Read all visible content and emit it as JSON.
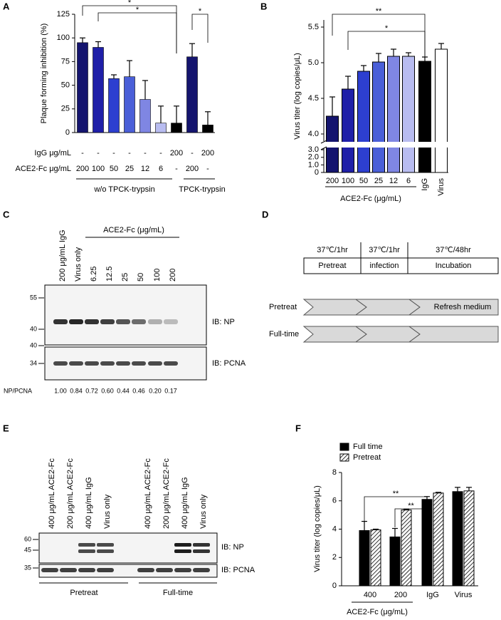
{
  "panel_letters": [
    "A",
    "B",
    "C",
    "D",
    "E",
    "F"
  ],
  "chart_data": [
    {
      "type": "bar",
      "y_label": "Plaque forming inhibition (%)",
      "values": [
        95,
        90,
        57,
        59,
        35,
        10,
        10,
        80,
        8
      ],
      "errors": [
        5,
        6,
        4,
        17,
        20,
        18,
        18,
        14,
        14
      ],
      "colors": [
        "#14146e",
        "#1f1fa8",
        "#2d3fd0",
        "#4a5fd8",
        "#7f86e3",
        "#b8bcf0",
        "#000000",
        "#14146e",
        "#000000"
      ],
      "ylim": [
        0,
        125
      ],
      "yticks": [
        0,
        25,
        50,
        75,
        100,
        125
      ],
      "rows": [
        {
          "label": "IgG μg/mL",
          "cells": [
            "-",
            "-",
            "-",
            "-",
            "-",
            "-",
            "200",
            "-",
            "200"
          ]
        },
        {
          "label": "ACE2-Fc μg/mL",
          "cells": [
            "200",
            "100",
            "50",
            "25",
            "12",
            "6",
            "-",
            "200",
            "-"
          ]
        }
      ],
      "groups": [
        "w/o TPCK-trypsin",
        "TPCK-trypsin"
      ],
      "significance": [
        "*",
        "*",
        "*"
      ]
    },
    {
      "type": "broken-bar",
      "y_label": "Virus titer (log copies/μL)",
      "categories": [
        "200",
        "100",
        "50",
        "25",
        "12",
        "6",
        "IgG",
        "Virus"
      ],
      "values": [
        4.25,
        4.63,
        4.88,
        5.01,
        5.09,
        5.09,
        5.02,
        5.19
      ],
      "errors": [
        0.27,
        0.18,
        0.08,
        0.12,
        0.1,
        0.05,
        0.06,
        0.08
      ],
      "colors": [
        "#14146e",
        "#1f1fa8",
        "#2d3fd0",
        "#4a5fd8",
        "#7f86e3",
        "#b8bcf0",
        "#000000",
        "#ffffff"
      ],
      "segments": [
        {
          "ylim": [
            0,
            3.2
          ],
          "yticks": [
            0,
            {
              "value": 1,
              "label": "1.0"
            },
            {
              "value": 2,
              "label": "2.0"
            },
            {
              "value": 3,
              "label": "3.0"
            }
          ]
        },
        {
          "ylim": [
            3.9,
            5.6
          ],
          "yticks": [
            {
              "value": 4,
              "label": "4.0"
            },
            4.5,
            {
              "value": 5,
              "label": "5.0"
            },
            5.5
          ]
        }
      ],
      "group_label": "ACE2-Fc (μg/mL)",
      "significance": [
        "**",
        "*"
      ]
    },
    {
      "type": "grouped-bar",
      "y_label": "Virus titer (log copies/μL)",
      "categories": [
        "400",
        "200",
        "IgG",
        "Virus"
      ],
      "series": [
        {
          "name": "Full time",
          "color": "#000000",
          "values": [
            3.9,
            3.45,
            6.1,
            6.65
          ],
          "errors": [
            0.65,
            0.6,
            0.2,
            0.3
          ]
        },
        {
          "name": "Pretreat",
          "color": "#000000",
          "pattern": "hatch",
          "values": [
            3.95,
            5.35,
            6.55,
            6.7
          ],
          "errors": [
            0.05,
            0.05,
            0.05,
            0.25
          ]
        }
      ],
      "ylim": [
        0,
        8
      ],
      "yticks": [
        0,
        2,
        4,
        6,
        8
      ],
      "group_label": "ACE2-Fc (μg/mL)",
      "significance": [
        "**",
        "**"
      ]
    }
  ],
  "blot_c": {
    "lanes": [
      "200  μg/mL IgG",
      "Virus only",
      "6.25",
      "12.5",
      "25",
      "50",
      "100",
      "200"
    ],
    "header": "ACE2-Fc (μg/mL)",
    "markers_np": [
      "55",
      "40"
    ],
    "markers_pcna": [
      "40",
      "34"
    ],
    "targets": [
      "IB: NP",
      "IB: PCNA"
    ],
    "ratio_label": "NP/PCNA",
    "ratios": [
      "1.00",
      "0.84",
      "0.72",
      "0.60",
      "0.44",
      "0.46",
      "0.20",
      "0.17"
    ]
  },
  "diagram_d": {
    "times": [
      "37℃/1hr",
      "37℃/1hr",
      "37℃/48hr"
    ],
    "steps": [
      "Pretreat",
      "infection",
      "Incubation"
    ],
    "rows": [
      "Pretreat",
      "Full-time"
    ],
    "note": "Refresh medium"
  },
  "blot_e": {
    "lanes": [
      "400  μg/mL ACE2-Fc",
      "200  μg/mL ACE2-Fc",
      "400  μg/mL IgG",
      "Virus only",
      "400  μg/mL ACE2-Fc",
      "200  μg/mL ACE2-Fc",
      "400  μg/mL IgG",
      "Virus only"
    ],
    "markers_np": [
      "60",
      "45"
    ],
    "markers_pcna": [
      "35"
    ],
    "targets": [
      "IB: NP",
      "IB: PCNA"
    ],
    "groups": [
      "Pretreat",
      "Full-time"
    ]
  }
}
